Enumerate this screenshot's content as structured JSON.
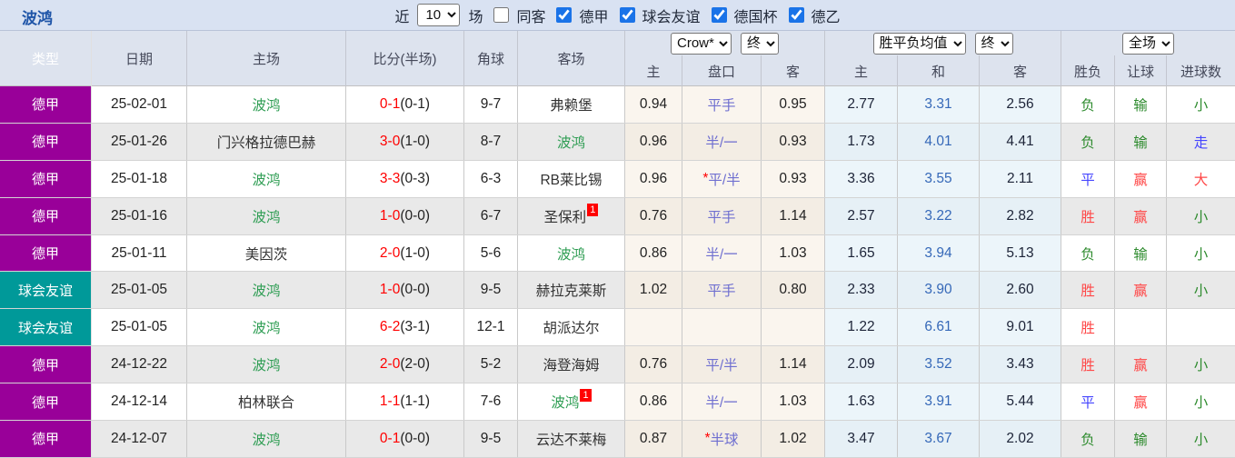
{
  "page": {
    "team_title": "波鸿",
    "topbar": {
      "recent_label": "近",
      "recent_value": "10",
      "matches_label": "场",
      "same_opponent": {
        "label": "同客",
        "checked": false
      },
      "leagues": [
        {
          "label": "德甲",
          "checked": true
        },
        {
          "label": "球会友谊",
          "checked": true
        },
        {
          "label": "德国杯",
          "checked": true
        },
        {
          "label": "德乙",
          "checked": true
        }
      ]
    }
  },
  "table": {
    "columns": {
      "type": "类型",
      "date": "日期",
      "home": "主场",
      "score": "比分(半场)",
      "corner": "角球",
      "away": "客场"
    },
    "selectors": {
      "bookmaker": "Crow*",
      "bookmaker_state": "终",
      "avg_type": "胜平负均值",
      "avg_state": "终",
      "scope": "全场"
    },
    "subheaders": {
      "odds_home": "主",
      "handicap": "盘口",
      "odds_away": "客",
      "avg_home": "主",
      "avg_draw": "和",
      "avg_away": "客",
      "wdl": "胜负",
      "rh": "让球",
      "rg": "进球数"
    },
    "rows": [
      {
        "type": "德甲",
        "type_class": "lg-purple",
        "date": "25-02-01",
        "home": "波鸿",
        "home_class": "self",
        "home_badge": "",
        "score": "0-1",
        "half": "(0-1)",
        "corner": "9-7",
        "away": "弗赖堡",
        "away_class": "",
        "away_badge": "",
        "odds_home": "0.94",
        "handicap_star": "",
        "handicap": "平手",
        "odds_away": "0.95",
        "avg_home": "2.77",
        "avg_draw": "3.31",
        "avg_away": "2.56",
        "wdl": "负",
        "wdl_class": "c-green",
        "rh": "输",
        "rh_class": "c-green",
        "rg": "小",
        "rg_class": "c-green"
      },
      {
        "type": "德甲",
        "type_class": "lg-purple",
        "date": "25-01-26",
        "home": "门兴格拉德巴赫",
        "home_class": "",
        "home_badge": "",
        "score": "3-0",
        "half": "(1-0)",
        "corner": "8-7",
        "away": "波鸿",
        "away_class": "self",
        "away_badge": "",
        "odds_home": "0.96",
        "handicap_star": "",
        "handicap": "半/一",
        "odds_away": "0.93",
        "avg_home": "1.73",
        "avg_draw": "4.01",
        "avg_away": "4.41",
        "wdl": "负",
        "wdl_class": "c-green",
        "rh": "输",
        "rh_class": "c-green",
        "rg": "走",
        "rg_class": "c-blue"
      },
      {
        "type": "德甲",
        "type_class": "lg-purple",
        "date": "25-01-18",
        "home": "波鸿",
        "home_class": "self",
        "home_badge": "",
        "score": "3-3",
        "half": "(0-3)",
        "corner": "6-3",
        "away": "RB莱比锡",
        "away_class": "",
        "away_badge": "",
        "odds_home": "0.96",
        "handicap_star": "*",
        "handicap": "平/半",
        "odds_away": "0.93",
        "avg_home": "3.36",
        "avg_draw": "3.55",
        "avg_away": "2.11",
        "wdl": "平",
        "wdl_class": "c-blue",
        "rh": "赢",
        "rh_class": "c-red",
        "rg": "大",
        "rg_class": "c-red"
      },
      {
        "type": "德甲",
        "type_class": "lg-purple",
        "date": "25-01-16",
        "home": "波鸿",
        "home_class": "self",
        "home_badge": "",
        "score": "1-0",
        "half": "(0-0)",
        "corner": "6-7",
        "away": "圣保利",
        "away_class": "",
        "away_badge": "1",
        "odds_home": "0.76",
        "handicap_star": "",
        "handicap": "平手",
        "odds_away": "1.14",
        "avg_home": "2.57",
        "avg_draw": "3.22",
        "avg_away": "2.82",
        "wdl": "胜",
        "wdl_class": "c-red",
        "rh": "赢",
        "rh_class": "c-red",
        "rg": "小",
        "rg_class": "c-green"
      },
      {
        "type": "德甲",
        "type_class": "lg-purple",
        "date": "25-01-11",
        "home": "美因茨",
        "home_class": "",
        "home_badge": "",
        "score": "2-0",
        "half": "(1-0)",
        "corner": "5-6",
        "away": "波鸿",
        "away_class": "self",
        "away_badge": "",
        "odds_home": "0.86",
        "handicap_star": "",
        "handicap": "半/一",
        "odds_away": "1.03",
        "avg_home": "1.65",
        "avg_draw": "3.94",
        "avg_away": "5.13",
        "wdl": "负",
        "wdl_class": "c-green",
        "rh": "输",
        "rh_class": "c-green",
        "rg": "小",
        "rg_class": "c-green"
      },
      {
        "type": "球会友谊",
        "type_class": "lg-teal",
        "date": "25-01-05",
        "home": "波鸿",
        "home_class": "self",
        "home_badge": "",
        "score": "1-0",
        "half": "(0-0)",
        "corner": "9-5",
        "away": "赫拉克莱斯",
        "away_class": "",
        "away_badge": "",
        "odds_home": "1.02",
        "handicap_star": "",
        "handicap": "平手",
        "odds_away": "0.80",
        "avg_home": "2.33",
        "avg_draw": "3.90",
        "avg_away": "2.60",
        "wdl": "胜",
        "wdl_class": "c-red",
        "rh": "赢",
        "rh_class": "c-red",
        "rg": "小",
        "rg_class": "c-green"
      },
      {
        "type": "球会友谊",
        "type_class": "lg-teal",
        "date": "25-01-05",
        "home": "波鸿",
        "home_class": "self",
        "home_badge": "",
        "score": "6-2",
        "half": "(3-1)",
        "corner": "12-1",
        "away": "胡派达尔",
        "away_class": "",
        "away_badge": "",
        "odds_home": "",
        "handicap_star": "",
        "handicap": "",
        "odds_away": "",
        "avg_home": "1.22",
        "avg_draw": "6.61",
        "avg_away": "9.01",
        "wdl": "胜",
        "wdl_class": "c-red",
        "rh": "",
        "rh_class": "",
        "rg": "",
        "rg_class": ""
      },
      {
        "type": "德甲",
        "type_class": "lg-purple",
        "date": "24-12-22",
        "home": "波鸿",
        "home_class": "self",
        "home_badge": "",
        "score": "2-0",
        "half": "(2-0)",
        "corner": "5-2",
        "away": "海登海姆",
        "away_class": "",
        "away_badge": "",
        "odds_home": "0.76",
        "handicap_star": "",
        "handicap": "平/半",
        "odds_away": "1.14",
        "avg_home": "2.09",
        "avg_draw": "3.52",
        "avg_away": "3.43",
        "wdl": "胜",
        "wdl_class": "c-red",
        "rh": "赢",
        "rh_class": "c-red",
        "rg": "小",
        "rg_class": "c-green"
      },
      {
        "type": "德甲",
        "type_class": "lg-purple",
        "date": "24-12-14",
        "home": "柏林联合",
        "home_class": "",
        "home_badge": "",
        "score": "1-1",
        "half": "(1-1)",
        "corner": "7-6",
        "away": "波鸿",
        "away_class": "self",
        "away_badge": "1",
        "odds_home": "0.86",
        "handicap_star": "",
        "handicap": "半/一",
        "odds_away": "1.03",
        "avg_home": "1.63",
        "avg_draw": "3.91",
        "avg_away": "5.44",
        "wdl": "平",
        "wdl_class": "c-blue",
        "rh": "赢",
        "rh_class": "c-red",
        "rg": "小",
        "rg_class": "c-green"
      },
      {
        "type": "德甲",
        "type_class": "lg-purple",
        "date": "24-12-07",
        "home": "波鸿",
        "home_class": "self",
        "home_badge": "",
        "score": "0-1",
        "half": "(0-0)",
        "corner": "9-5",
        "away": "云达不莱梅",
        "away_class": "",
        "away_badge": "",
        "odds_home": "0.87",
        "handicap_star": "*",
        "handicap": "半球",
        "odds_away": "1.02",
        "avg_home": "3.47",
        "avg_draw": "3.67",
        "avg_away": "2.02",
        "wdl": "负",
        "wdl_class": "c-green",
        "rh": "输",
        "rh_class": "c-green",
        "rg": "小",
        "rg_class": "c-green"
      }
    ]
  },
  "colors": {
    "league_purple": "#990099",
    "league_teal": "#009999",
    "topbar_bg": "#d9e2f2",
    "header_bg": "#dde3ee",
    "odds_bg": "#faf5ee",
    "avg_bg": "#ecf5fa",
    "score_red": "#ff0000",
    "win_red": "#ff4848",
    "lose_green": "#2e8b2e",
    "draw_blue": "#4545ff",
    "self_team_green": "#2e9d53",
    "handicap_blue": "#6f6fd0",
    "checkbox_blue": "#1a73e8"
  }
}
